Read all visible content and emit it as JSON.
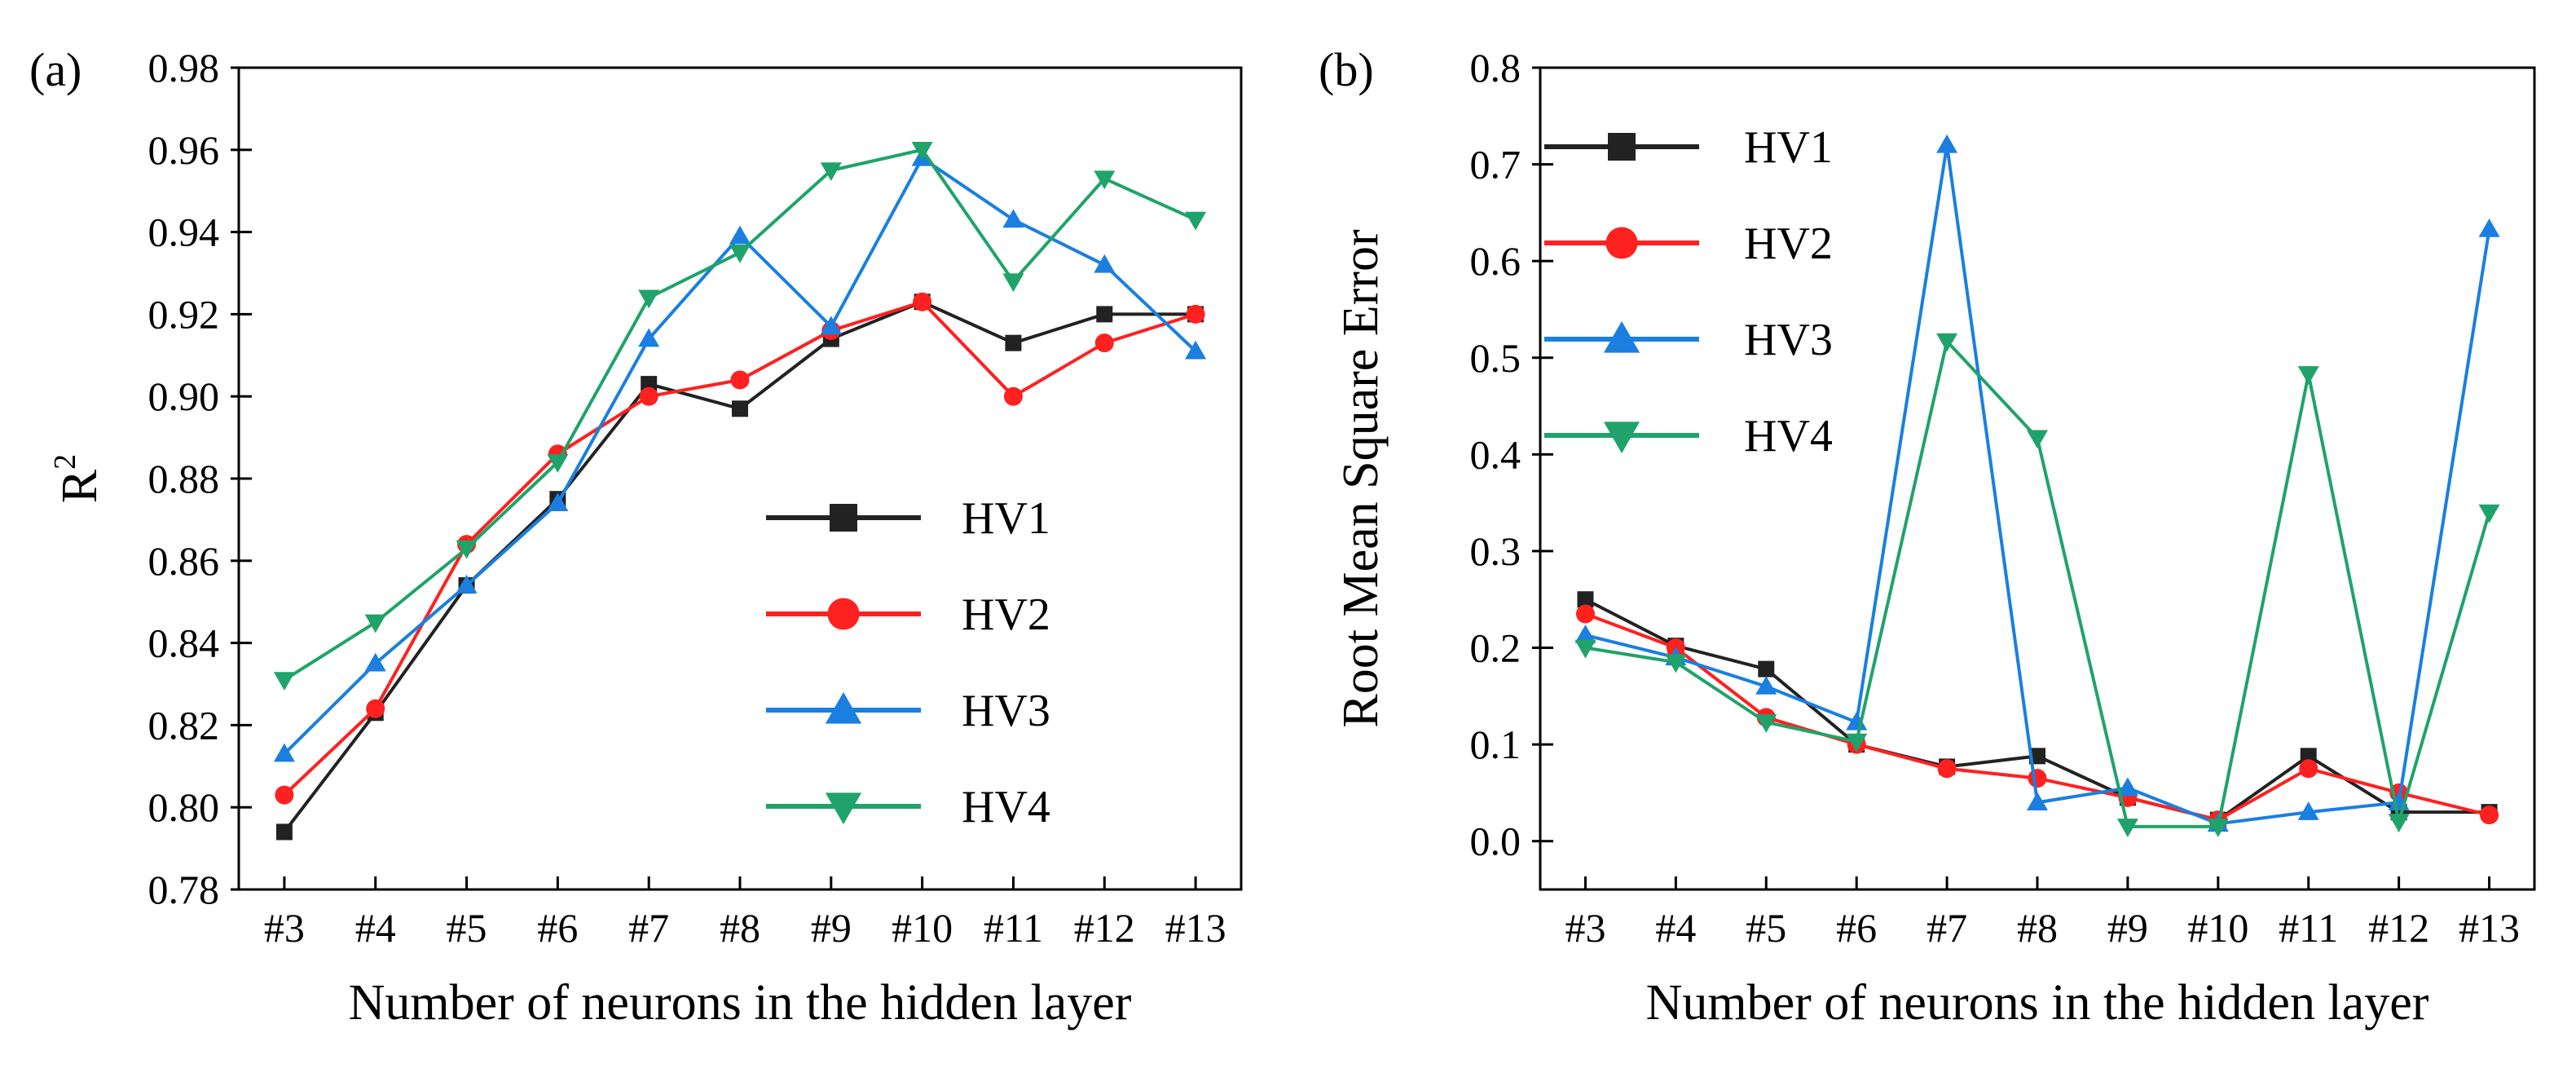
{
  "chart_data": [
    {
      "type": "line",
      "panel_label": "(a)",
      "xlabel": "Number of neurons in the hidden layer",
      "ylabel": "R",
      "ylabel_sup": "2",
      "categories": [
        "#3",
        "#4",
        "#5",
        "#6",
        "#7",
        "#8",
        "#9",
        "#10",
        "#11",
        "#12",
        "#13"
      ],
      "ylim": [
        0.78,
        0.98
      ],
      "yticks": [
        "0.78",
        "0.80",
        "0.82",
        "0.84",
        "0.86",
        "0.88",
        "0.90",
        "0.92",
        "0.94",
        "0.96",
        "0.98"
      ],
      "grid": false,
      "legend_position": "lower-right",
      "series": [
        {
          "name": "HV1",
          "color": "#222222",
          "marker": "square",
          "values": [
            0.794,
            0.823,
            0.854,
            0.875,
            0.903,
            0.897,
            0.914,
            0.923,
            0.913,
            0.92,
            0.92
          ]
        },
        {
          "name": "HV2",
          "color": "#ff2020",
          "marker": "circle",
          "values": [
            0.803,
            0.824,
            0.864,
            0.886,
            0.9,
            0.904,
            0.916,
            0.923,
            0.9,
            0.913,
            0.92
          ]
        },
        {
          "name": "HV3",
          "color": "#1a7fe0",
          "marker": "triangle-up",
          "values": [
            0.813,
            0.835,
            0.854,
            0.874,
            0.914,
            0.939,
            0.917,
            0.958,
            0.943,
            0.932,
            0.911
          ]
        },
        {
          "name": "HV4",
          "color": "#1fa36a",
          "marker": "triangle-down",
          "values": [
            0.831,
            0.845,
            0.863,
            0.884,
            0.924,
            0.935,
            0.955,
            0.96,
            0.928,
            0.953,
            0.943
          ]
        }
      ]
    },
    {
      "type": "line",
      "panel_label": "(b)",
      "xlabel": "Number of neurons in the hidden layer",
      "ylabel": "Root Mean  Square Error",
      "categories": [
        "#3",
        "#4",
        "#5",
        "#6",
        "#7",
        "#8",
        "#9",
        "#10",
        "#11",
        "#12",
        "#13"
      ],
      "ylim": [
        -0.05,
        0.8
      ],
      "yticks": [
        "0.0",
        "0.1",
        "0.2",
        "0.3",
        "0.4",
        "0.5",
        "0.6",
        "0.7",
        "0.8"
      ],
      "grid": false,
      "legend_position": "top-left",
      "series": [
        {
          "name": "HV1",
          "color": "#222222",
          "marker": "square",
          "values": [
            0.25,
            0.202,
            0.178,
            0.1,
            0.077,
            0.088,
            0.045,
            0.022,
            0.088,
            0.03,
            0.03
          ]
        },
        {
          "name": "HV2",
          "color": "#ff2020",
          "marker": "circle",
          "values": [
            0.235,
            0.2,
            0.128,
            0.1,
            0.075,
            0.065,
            0.045,
            0.022,
            0.075,
            0.05,
            0.027
          ]
        },
        {
          "name": "HV3",
          "color": "#1a7fe0",
          "marker": "triangle-up",
          "values": [
            0.213,
            0.19,
            0.16,
            0.123,
            0.72,
            0.04,
            0.055,
            0.018,
            0.03,
            0.04,
            0.633
          ]
        },
        {
          "name": "HV4",
          "color": "#1fa36a",
          "marker": "triangle-down",
          "values": [
            0.2,
            0.185,
            0.123,
            0.103,
            0.517,
            0.417,
            0.015,
            0.015,
            0.483,
            0.02,
            0.34
          ]
        }
      ]
    }
  ]
}
